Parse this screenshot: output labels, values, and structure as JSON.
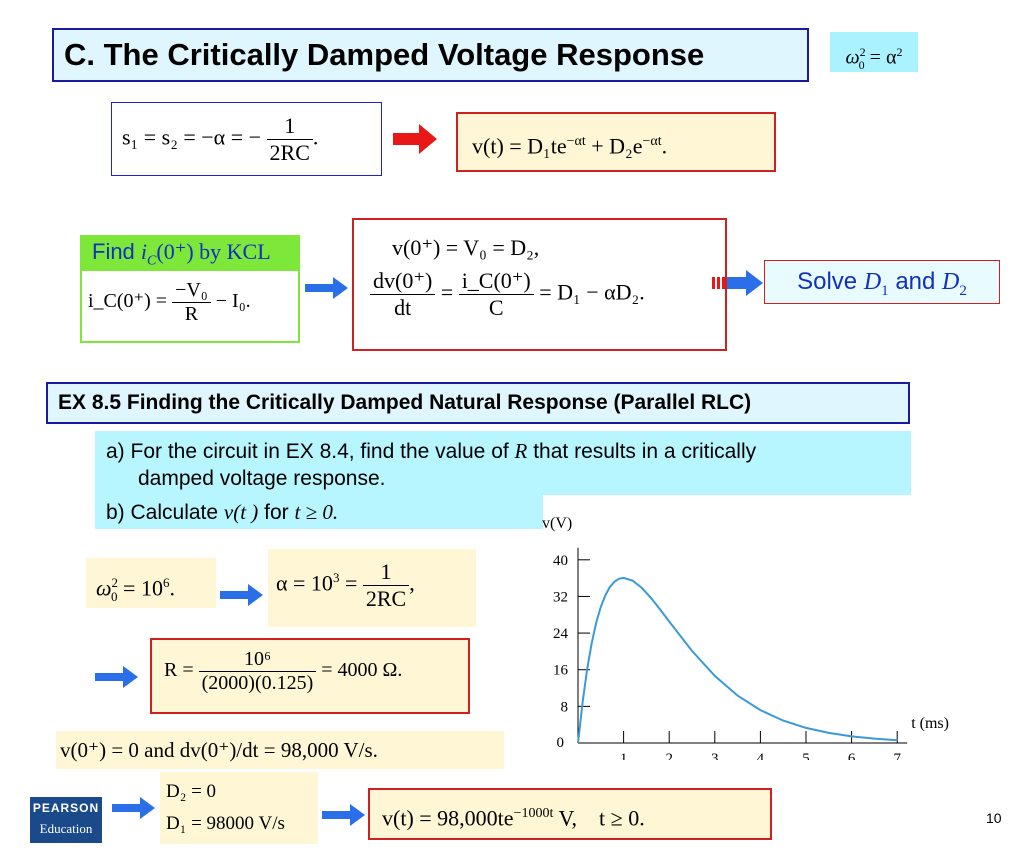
{
  "title": "C. The Critically Damped Voltage Response",
  "omega_rel": {
    "lhs": "ω",
    "sup": "2",
    "sub": "0",
    "rhs": "= α",
    "rhs_sup": "2"
  },
  "roots_eq": {
    "lhs": "s₁ = s₂ = −α = −",
    "num": "1",
    "den": "2RC",
    "tail": "."
  },
  "vt_general": {
    "text": "v(t) = D₁te",
    "exp1": "−αt",
    "mid": " + D₂e",
    "exp2": "−αt",
    "tail": "."
  },
  "kcl": {
    "label_pre": "Find ",
    "label_var": "i",
    "label_sub": "C",
    "label_post": "(0⁺) by KCL",
    "lhs": "i_C(0⁺) =",
    "num": "−V₀",
    "den": "R",
    "tail": "− I₀."
  },
  "initial": {
    "line1": "v(0⁺) = V₀ = D₂,",
    "num1": "dv(0⁺)",
    "den1": "dt",
    "eq": "=",
    "num2": "i_C(0⁺)",
    "den2": "C",
    "tail": "= D₁ − αD₂."
  },
  "solve": {
    "pre": "Solve ",
    "d1": "D",
    "d1_sub": "1",
    "mid": " and ",
    "d2": "D",
    "d2_sub": "2"
  },
  "example_title": "EX 8.5 Finding the Critically Damped Natural Response (Parallel RLC)",
  "question_a": {
    "pre": "a)  For the circuit in EX 8.4, find the value of ",
    "var": "R",
    "post": " that results in a critically",
    "line2": "damped voltage response."
  },
  "question_b": {
    "pre": "b) Calculate ",
    "var": "v(t )",
    "mid": " for ",
    "cond": "t ≥ 0."
  },
  "omega_value": {
    "text": "ω",
    "sup": "2",
    "sub": "0",
    "tail": " = 10",
    "tail_sup": "6",
    "dot": "."
  },
  "alpha_value": {
    "lhs": "α = 10",
    "sup": "3",
    "eq": " =",
    "num": "1",
    "den": "2RC",
    "tail": ","
  },
  "r_value": {
    "lhs": "R =",
    "num": "10⁶",
    "den": "(2000)(0.125)",
    "tail": "= 4000 Ω."
  },
  "ic_value": "v(0⁺) = 0 and dv(0⁺)/dt = 98,000 V/s.",
  "d_values": {
    "d2": "D₂ = 0",
    "d1": "D₁ = 98000 V/s"
  },
  "final": {
    "text": "v(t) = 98,000te",
    "exp": "−1000t",
    "tail": " V,    t ≥ 0."
  },
  "logo": {
    "line1": "PEARSON",
    "line2": "Education"
  },
  "page_number": "10",
  "chart_data": {
    "type": "line",
    "ylabel": "v(V)",
    "xlabel": "t (ms)",
    "xlim": [
      0,
      7
    ],
    "ylim": [
      0,
      40
    ],
    "xticks": [
      "1",
      "2",
      "3",
      "4",
      "5",
      "6",
      "7"
    ],
    "yticks": [
      "8",
      "16",
      "24",
      "32",
      "40"
    ],
    "origin_label": "0",
    "line_color": "#3a9ad8",
    "series": [
      {
        "x": [
          0,
          0.1,
          0.2,
          0.3,
          0.4,
          0.5,
          0.6,
          0.7,
          0.8,
          0.9,
          1.0,
          1.2,
          1.4,
          1.6,
          1.8,
          2.0,
          2.5,
          3.0,
          3.5,
          4.0,
          4.5,
          5.0,
          5.5,
          6.0,
          6.5,
          7.0
        ],
        "y": [
          0,
          8.87,
          16.05,
          21.78,
          26.28,
          29.72,
          32.27,
          34.06,
          35.22,
          35.86,
          36.05,
          35.43,
          33.87,
          31.68,
          29.15,
          26.52,
          20.11,
          14.64,
          10.36,
          7.18,
          4.9,
          3.3,
          2.2,
          1.45,
          0.96,
          0.62
        ]
      }
    ]
  },
  "colors": {
    "title_border": "#1a1aa0",
    "title_bg": "#dff6ff",
    "arrow": "#2b6fe8",
    "red_box": "#d02020",
    "green": "#7de83a",
    "cyan": "#b8f6ff",
    "blue_text": "#1030c0"
  }
}
